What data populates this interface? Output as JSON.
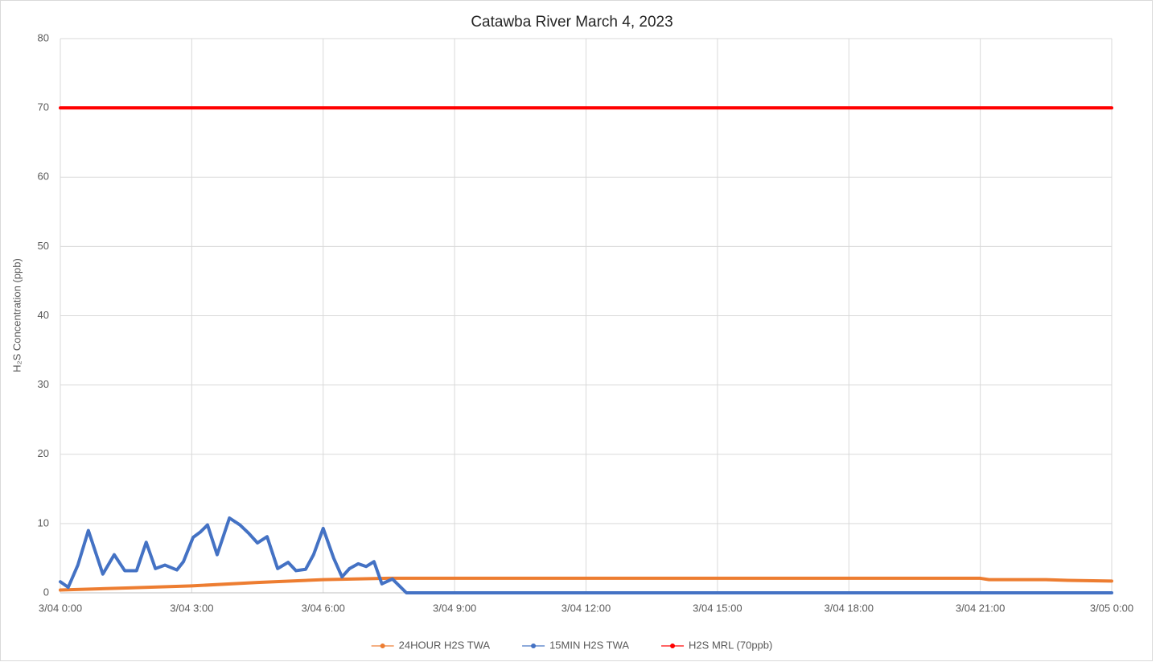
{
  "chart_data": {
    "type": "line",
    "title": "Catawba River March 4, 2023",
    "y_label": "H₂S Concentration (ppb)",
    "xlim": [
      0,
      24
    ],
    "xticks": [
      {
        "value": 0,
        "label": "3/04 0:00"
      },
      {
        "value": 3,
        "label": "3/04 3:00"
      },
      {
        "value": 6,
        "label": "3/04 6:00"
      },
      {
        "value": 9,
        "label": "3/04 9:00"
      },
      {
        "value": 12,
        "label": "3/04 12:00"
      },
      {
        "value": 15,
        "label": "3/04 15:00"
      },
      {
        "value": 18,
        "label": "3/04 18:00"
      },
      {
        "value": 21,
        "label": "3/04 21:00"
      },
      {
        "value": 24,
        "label": "3/05 0:00"
      }
    ],
    "ylim": [
      0,
      80
    ],
    "yticks": [
      0,
      10,
      20,
      30,
      40,
      50,
      60,
      70,
      80
    ],
    "grid": true,
    "legend": "bottom",
    "series": [
      {
        "name": "24HOUR H2S TWA",
        "color": "#ed7d31",
        "x": [
          0,
          1.5,
          3,
          4.5,
          6,
          7.5,
          21,
          21.2,
          22.5,
          23,
          24
        ],
        "values": [
          0.4,
          0.7,
          1.0,
          1.5,
          1.9,
          2.1,
          2.1,
          1.9,
          1.9,
          1.8,
          1.7
        ]
      },
      {
        "name": "15MIN H2S TWA",
        "color": "#4472c4",
        "x": [
          0,
          0.18,
          0.4,
          0.64,
          0.97,
          1.23,
          1.47,
          1.74,
          1.96,
          2.17,
          2.39,
          2.66,
          2.81,
          3.03,
          3.2,
          3.36,
          3.58,
          3.86,
          4.1,
          4.3,
          4.5,
          4.72,
          4.96,
          5.2,
          5.38,
          5.6,
          5.78,
          6.0,
          6.24,
          6.43,
          6.6,
          6.8,
          6.98,
          7.16,
          7.34,
          7.58,
          7.9,
          24
        ],
        "values": [
          1.6,
          0.8,
          4.0,
          9.0,
          2.7,
          5.5,
          3.2,
          3.2,
          7.3,
          3.5,
          4.0,
          3.3,
          4.5,
          8.0,
          8.8,
          9.8,
          5.5,
          10.8,
          9.8,
          8.6,
          7.2,
          8.1,
          3.5,
          4.4,
          3.2,
          3.4,
          5.5,
          9.3,
          5.0,
          2.3,
          3.5,
          4.2,
          3.8,
          4.5,
          1.3,
          2.0,
          0,
          0
        ]
      },
      {
        "name": "H2S MRL (70ppb)",
        "color": "#ff0000",
        "x": [
          0,
          24
        ],
        "values": [
          70,
          70
        ]
      }
    ]
  }
}
